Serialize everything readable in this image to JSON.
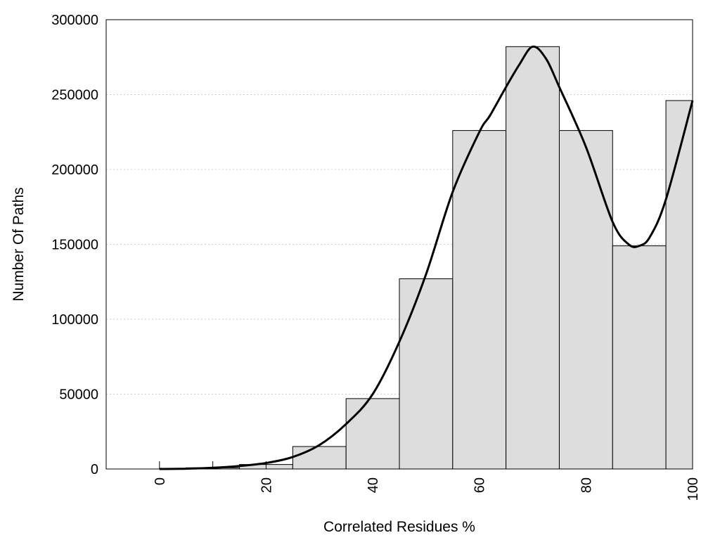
{
  "chart_data": {
    "type": "bar",
    "title": "",
    "xlabel": "Correlated Residues %",
    "ylabel": "Number Of Paths",
    "xlim": [
      -10,
      100
    ],
    "ylim": [
      0,
      300000
    ],
    "x_ticks": [
      0,
      20,
      40,
      60,
      80,
      100
    ],
    "y_ticks": [
      0,
      50000,
      100000,
      150000,
      200000,
      250000,
      300000
    ],
    "grid": "horizontal dotted",
    "bar_color": "#dddddd",
    "bins": [
      {
        "start": 0,
        "end": 5,
        "value": 300
      },
      {
        "start": 5,
        "end": 15,
        "value": 800
      },
      {
        "start": 15,
        "end": 25,
        "value": 3000
      },
      {
        "start": 25,
        "end": 35,
        "value": 15000
      },
      {
        "start": 35,
        "end": 45,
        "value": 47000
      },
      {
        "start": 45,
        "end": 55,
        "value": 127000
      },
      {
        "start": 55,
        "end": 65,
        "value": 226000
      },
      {
        "start": 65,
        "end": 75,
        "value": 282000
      },
      {
        "start": 75,
        "end": 85,
        "value": 226000
      },
      {
        "start": 85,
        "end": 95,
        "value": 149000
      },
      {
        "start": 95,
        "end": 100,
        "value": 246000
      }
    ],
    "curve": {
      "x": [
        0,
        5,
        10,
        15,
        20,
        25,
        30,
        35,
        40,
        45,
        50,
        55,
        60,
        62,
        65,
        67.5,
        70,
        72.5,
        75,
        80,
        85,
        88,
        90,
        92,
        95,
        100
      ],
      "y": [
        0,
        200,
        800,
        2000,
        4000,
        8000,
        16000,
        30000,
        50000,
        85000,
        130000,
        185000,
        225000,
        236000,
        255000,
        270000,
        282000,
        274000,
        255000,
        215000,
        165000,
        150000,
        149000,
        155000,
        180000,
        246000
      ]
    }
  }
}
